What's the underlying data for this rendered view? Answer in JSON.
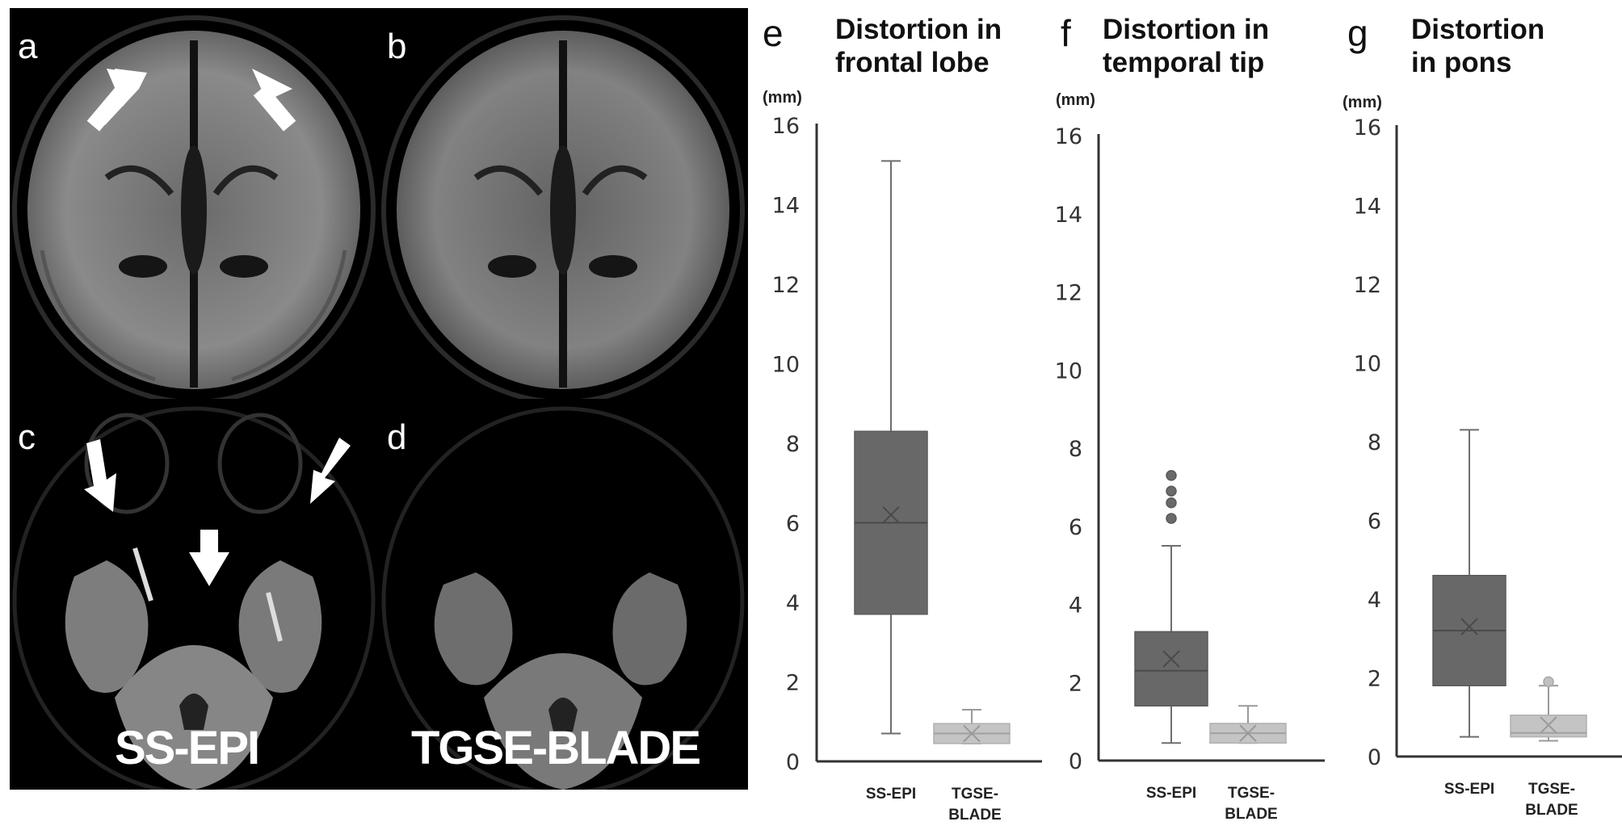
{
  "figure": {
    "mri_panels": [
      {
        "letter": "a",
        "arrows": 2
      },
      {
        "letter": "b",
        "arrows": 0
      },
      {
        "letter": "c",
        "arrows": 3
      },
      {
        "letter": "d",
        "arrows": 0
      }
    ],
    "sequence_labels": {
      "left": "SS-EPI",
      "right": "TGSE-BLADE"
    }
  },
  "colors": {
    "ss_epi_box": "#686868",
    "tgse_box": "#c4c4c4",
    "axis": "#333333",
    "whisker_dark": "#6e6e6e",
    "whisker_light": "#9a9a9a"
  },
  "charts": [
    {
      "letter": "e",
      "title": "Distortion in\nfrontal lobe",
      "unit": "(mm)"
    },
    {
      "letter": "f",
      "title": "Distortion in\ntemporal tip",
      "unit": "(mm)"
    },
    {
      "letter": "g",
      "title": "Distortion\nin pons",
      "unit": "(mm)"
    }
  ],
  "chart_data": [
    {
      "type": "box",
      "panel": "e",
      "title": "Distortion in frontal lobe",
      "ylabel": "(mm)",
      "xlabel": "",
      "ylim": [
        0,
        16
      ],
      "yticks": [
        0,
        2,
        4,
        6,
        8,
        10,
        12,
        14,
        16
      ],
      "grid": false,
      "legend": null,
      "categories": [
        "SS-EPI",
        "TGSE-BLADE"
      ],
      "series": [
        {
          "name": "SS-EPI",
          "min": 0.7,
          "q1": 3.7,
          "median": 6.0,
          "q3": 8.3,
          "max": 15.1,
          "mean": 6.2,
          "outliers": []
        },
        {
          "name": "TGSE-BLADE",
          "min": 0.45,
          "q1": 0.45,
          "median": 0.7,
          "q3": 0.95,
          "max": 1.3,
          "mean": 0.7,
          "outliers": []
        }
      ]
    },
    {
      "type": "box",
      "panel": "f",
      "title": "Distortion in temporal tip",
      "ylabel": "(mm)",
      "xlabel": "",
      "ylim": [
        0,
        16
      ],
      "yticks": [
        0,
        2,
        4,
        6,
        8,
        10,
        12,
        14,
        16
      ],
      "grid": false,
      "legend": null,
      "categories": [
        "SS-EPI",
        "TGSE-BLADE"
      ],
      "series": [
        {
          "name": "SS-EPI",
          "min": 0.45,
          "q1": 1.4,
          "median": 2.3,
          "q3": 3.3,
          "max": 5.5,
          "mean": 2.6,
          "outliers": [
            6.2,
            6.6,
            6.9,
            7.3
          ]
        },
        {
          "name": "TGSE-BLADE",
          "min": 0.45,
          "q1": 0.45,
          "median": 0.7,
          "q3": 0.95,
          "max": 1.4,
          "mean": 0.7,
          "outliers": []
        }
      ]
    },
    {
      "type": "box",
      "panel": "g",
      "title": "Distortion in pons",
      "ylabel": "(mm)",
      "xlabel": "",
      "ylim": [
        0,
        16
      ],
      "yticks": [
        0,
        2,
        4,
        6,
        8,
        10,
        12,
        14,
        16
      ],
      "grid": false,
      "legend": null,
      "categories": [
        "SS-EPI",
        "TGSE-BLADE"
      ],
      "series": [
        {
          "name": "SS-EPI",
          "min": 0.5,
          "q1": 1.8,
          "median": 3.2,
          "q3": 4.6,
          "max": 8.3,
          "mean": 3.3,
          "outliers": []
        },
        {
          "name": "TGSE-BLADE",
          "min": 0.4,
          "q1": 0.5,
          "median": 0.6,
          "q3": 1.05,
          "max": 1.8,
          "mean": 0.8,
          "outliers": [
            1.9
          ]
        }
      ]
    }
  ]
}
